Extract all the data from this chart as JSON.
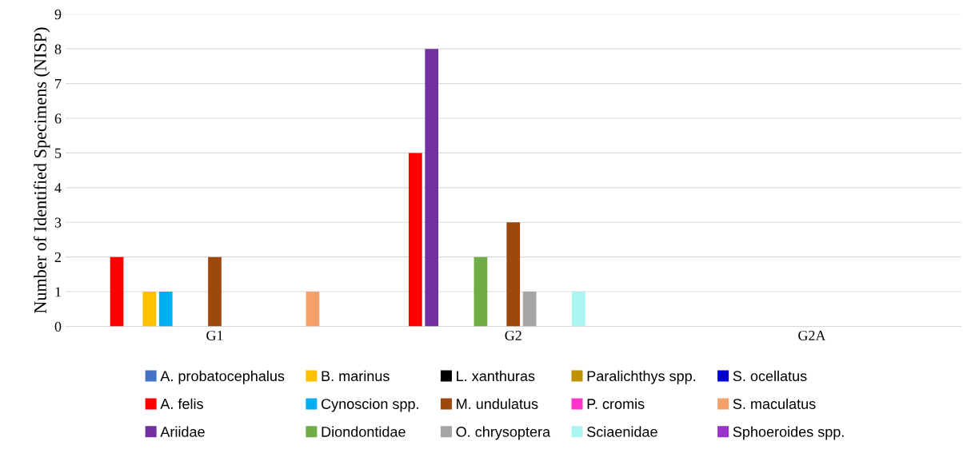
{
  "chart_data": {
    "type": "bar",
    "ylabel": "Number of Identified Specimens (NISP)",
    "categories": [
      "G1",
      "G2",
      "G2A"
    ],
    "series": [
      {
        "name": "A. probatocephalus",
        "color": "#4472c4",
        "values": [
          0,
          0,
          0
        ]
      },
      {
        "name": "A. felis",
        "color": "#ff0000",
        "values": [
          2,
          5,
          0
        ]
      },
      {
        "name": "Ariidae",
        "color": "#7030a0",
        "values": [
          0,
          8,
          0
        ]
      },
      {
        "name": "B. marinus",
        "color": "#ffc000",
        "values": [
          1,
          0,
          0
        ]
      },
      {
        "name": "Cynoscion spp.",
        "color": "#00b0f0",
        "values": [
          1,
          0,
          0
        ]
      },
      {
        "name": "Diondontidae",
        "color": "#70ad47",
        "values": [
          0,
          2,
          0
        ]
      },
      {
        "name": "L. xanthuras",
        "color": "#000000",
        "values": [
          0,
          0,
          0
        ]
      },
      {
        "name": "M. undulatus",
        "color": "#9e480e",
        "values": [
          2,
          3,
          0
        ]
      },
      {
        "name": "O. chrysoptera",
        "color": "#a5a5a5",
        "values": [
          0,
          1,
          0
        ]
      },
      {
        "name": "Paralichthys spp.",
        "color": "#bf9000",
        "values": [
          0,
          0,
          0
        ]
      },
      {
        "name": "P. cromis",
        "color": "#ff33cc",
        "values": [
          0,
          0,
          0
        ]
      },
      {
        "name": "Sciaenidae",
        "color": "#a9f5f0",
        "values": [
          0,
          1,
          0
        ]
      },
      {
        "name": "S. ocellatus",
        "color": "#0000cc",
        "values": [
          0,
          0,
          0
        ]
      },
      {
        "name": "S. maculatus",
        "color": "#f4a06a",
        "values": [
          1,
          0,
          0
        ]
      },
      {
        "name": "Sphoeroides spp.",
        "color": "#9933cc",
        "values": [
          0,
          0,
          0
        ]
      }
    ],
    "ylim": [
      0,
      9
    ],
    "yticks": [
      0,
      1,
      2,
      3,
      4,
      5,
      6,
      7,
      8,
      9
    ],
    "grid": "y",
    "legend": "bottom"
  }
}
